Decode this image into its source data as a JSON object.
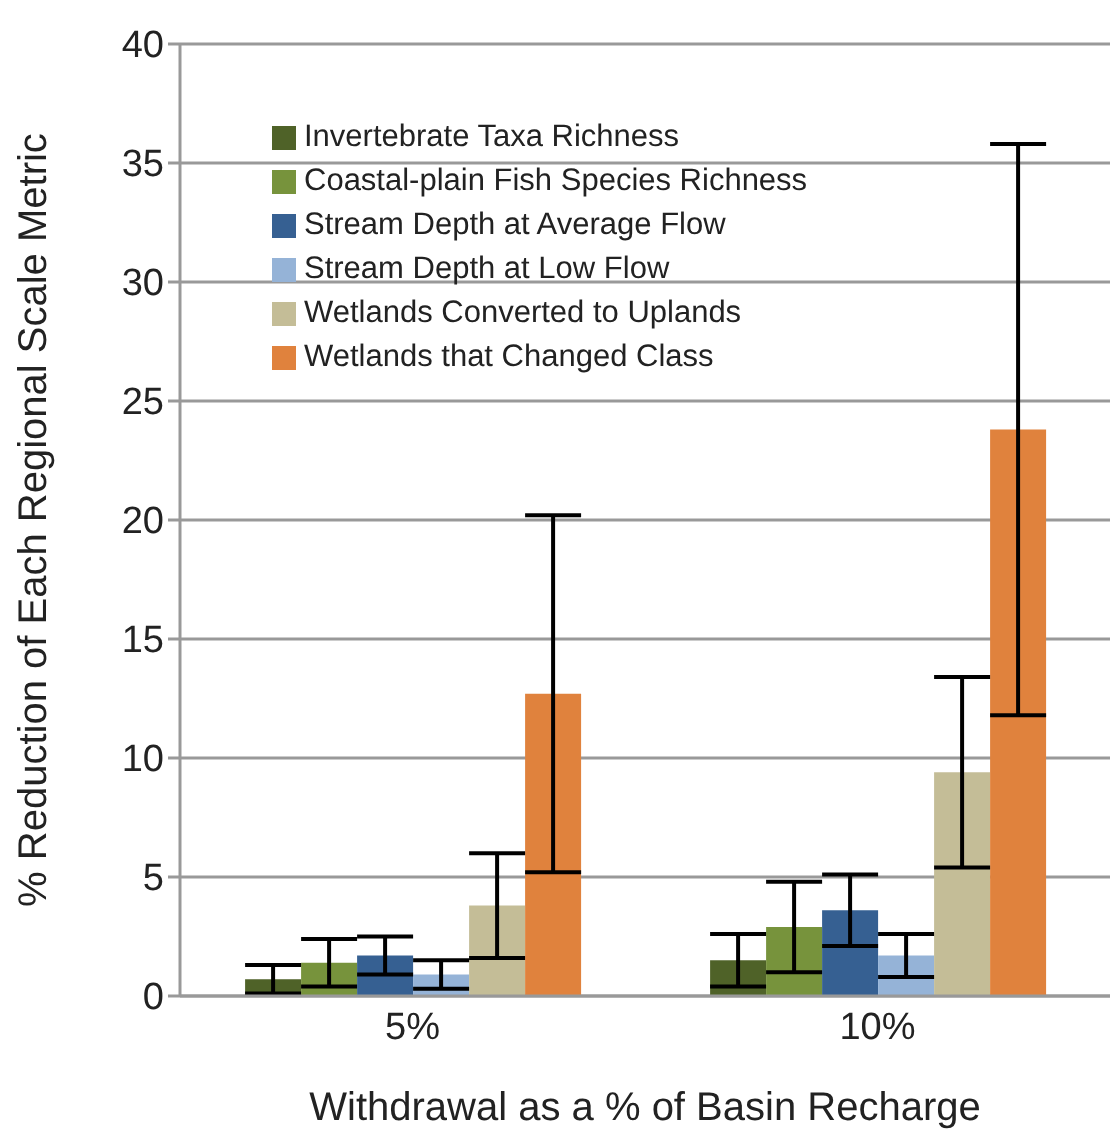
{
  "chart_data": {
    "type": "bar",
    "xlabel": "Withdrawal as a % of Basin Recharge",
    "ylabel": "% Reduction of Each Regional Scale Metric",
    "categories": [
      "5%",
      "10%"
    ],
    "series": [
      {
        "name": "Invertebrate Taxa Richness",
        "color": "#4f6228",
        "values": [
          0.7,
          1.5
        ],
        "errors": [
          0.6,
          1.1
        ]
      },
      {
        "name": "Coastal-plain Fish Species Richness",
        "color": "#77933c",
        "values": [
          1.4,
          2.9
        ],
        "errors": [
          1.0,
          1.9
        ]
      },
      {
        "name": "Stream Depth  at Average Flow",
        "color": "#366092",
        "values": [
          1.7,
          3.6
        ],
        "errors": [
          0.8,
          1.5
        ]
      },
      {
        "name": "Stream Depth at  Low Flow",
        "color": "#95b3d7",
        "values": [
          0.9,
          1.7
        ],
        "errors": [
          0.6,
          0.9
        ]
      },
      {
        "name": "Wetlands Converted to Uplands",
        "color": "#c4bd97",
        "values": [
          3.8,
          9.4
        ],
        "errors": [
          2.2,
          4.0
        ]
      },
      {
        "name": "Wetlands that Changed Class",
        "color": "#e0823d",
        "values": [
          12.7,
          23.8
        ],
        "errors": [
          7.5,
          12.0
        ]
      }
    ],
    "ylim": [
      0,
      40
    ],
    "yticks": [
      0,
      5,
      10,
      15,
      20,
      25,
      30,
      35,
      40
    ],
    "grid": "y",
    "legend": "top left"
  }
}
